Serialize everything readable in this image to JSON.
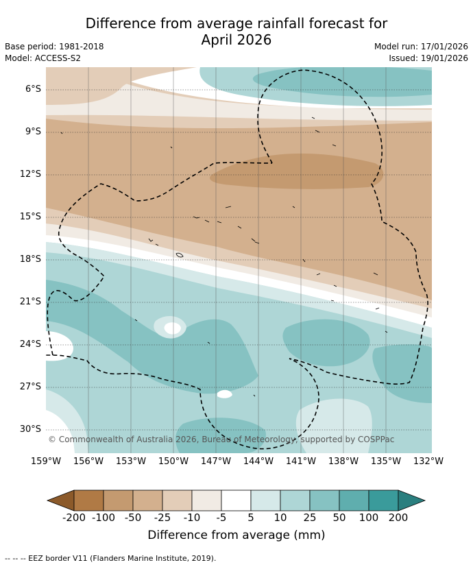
{
  "title_line1": "Difference from average rainfall forecast for",
  "title_line2": "April 2026",
  "base_period": "Base period: 1981-2018",
  "model": "Model: ACCESS-S2",
  "model_run": "Model run: 17/01/2026",
  "issued": "Issued: 19/01/2026",
  "lat_ticks": [
    "6°S",
    "9°S",
    "12°S",
    "15°S",
    "18°S",
    "21°S",
    "24°S",
    "27°S",
    "30°S"
  ],
  "lon_ticks": [
    "159°W",
    "156°W",
    "153°W",
    "150°W",
    "147°W",
    "144°W",
    "141°W",
    "138°W",
    "135°W",
    "132°W"
  ],
  "copyright": "© Commonwealth of Australia 2026, Bureau of Meteorology, supported by COSPPac",
  "colorbar": {
    "title": "Difference from average (mm)",
    "labels": [
      "-200",
      "-100",
      "-50",
      "-25",
      "-10",
      "-5",
      "5",
      "10",
      "25",
      "50",
      "100",
      "200"
    ],
    "colors": [
      "#8c5a2a",
      "#b07a45",
      "#c49a70",
      "#d3b08e",
      "#e3cdb8",
      "#f1ebe4",
      "#ffffff",
      "#d6e9e9",
      "#aed6d6",
      "#86c2c2",
      "#5faeae",
      "#3a9b9b",
      "#2a7f7f"
    ]
  },
  "footnote": "-- -- -- EEZ border V11 (Flanders Marine Institute, 2019)."
}
